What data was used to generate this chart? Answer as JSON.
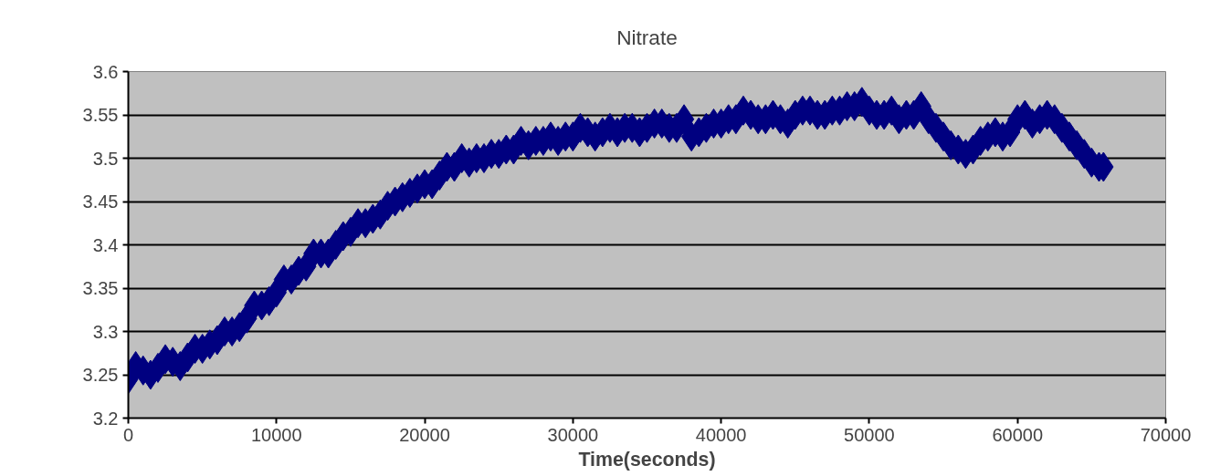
{
  "chart_data": {
    "type": "scatter",
    "title": "Nitrate",
    "xlabel": "Time(seconds)",
    "x": [
      0,
      500,
      1000,
      1500,
      2000,
      2500,
      3000,
      3500,
      4000,
      4500,
      5000,
      5500,
      6000,
      6500,
      7000,
      7500,
      8000,
      8500,
      9000,
      9500,
      10000,
      10500,
      11000,
      11500,
      12000,
      12500,
      13000,
      13500,
      14000,
      14500,
      15000,
      15500,
      16000,
      16500,
      17000,
      17500,
      18000,
      18500,
      19000,
      19500,
      20000,
      20500,
      21000,
      21500,
      22000,
      22500,
      23000,
      23500,
      24000,
      24500,
      25000,
      25500,
      26000,
      26500,
      27000,
      27500,
      28000,
      28500,
      29000,
      29500,
      30000,
      30500,
      31000,
      31500,
      32000,
      32500,
      33000,
      33500,
      34000,
      34500,
      35000,
      35500,
      36000,
      36500,
      37000,
      37500,
      38000,
      38500,
      39000,
      39500,
      40000,
      40500,
      41000,
      41500,
      42000,
      42500,
      43000,
      43500,
      44000,
      44500,
      45000,
      45500,
      46000,
      46500,
      47000,
      47500,
      48000,
      48500,
      49000,
      49500,
      50000,
      50500,
      51000,
      51500,
      52000,
      52500,
      53000,
      53500,
      54000,
      54500,
      55000,
      55500,
      56000,
      56500,
      57000,
      57500,
      58000,
      58500,
      59000,
      59500,
      60000,
      60500,
      61000,
      61500,
      62000,
      62500,
      63000,
      63500,
      64000,
      64500,
      65000,
      65500,
      65800
    ],
    "series": [
      {
        "color": "#000080",
        "values": [
          3.245,
          3.26,
          3.255,
          3.25,
          3.258,
          3.268,
          3.265,
          3.26,
          3.27,
          3.28,
          3.28,
          3.285,
          3.29,
          3.3,
          3.3,
          3.305,
          3.315,
          3.33,
          3.33,
          3.335,
          3.345,
          3.36,
          3.36,
          3.37,
          3.375,
          3.39,
          3.39,
          3.39,
          3.4,
          3.41,
          3.415,
          3.425,
          3.425,
          3.43,
          3.435,
          3.445,
          3.45,
          3.455,
          3.46,
          3.465,
          3.47,
          3.47,
          3.48,
          3.49,
          3.49,
          3.5,
          3.495,
          3.5,
          3.5,
          3.505,
          3.505,
          3.51,
          3.51,
          3.52,
          3.515,
          3.52,
          3.52,
          3.525,
          3.52,
          3.525,
          3.525,
          3.535,
          3.53,
          3.525,
          3.53,
          3.535,
          3.53,
          3.535,
          3.535,
          3.53,
          3.535,
          3.54,
          3.54,
          3.535,
          3.535,
          3.545,
          3.525,
          3.53,
          3.535,
          3.54,
          3.54,
          3.545,
          3.545,
          3.555,
          3.55,
          3.545,
          3.545,
          3.55,
          3.545,
          3.54,
          3.55,
          3.555,
          3.555,
          3.55,
          3.55,
          3.555,
          3.555,
          3.56,
          3.56,
          3.565,
          3.555,
          3.55,
          3.55,
          3.555,
          3.545,
          3.55,
          3.55,
          3.56,
          3.545,
          3.535,
          3.525,
          3.515,
          3.51,
          3.505,
          3.51,
          3.52,
          3.525,
          3.53,
          3.525,
          3.53,
          3.545,
          3.55,
          3.54,
          3.545,
          3.55,
          3.545,
          3.535,
          3.525,
          3.515,
          3.505,
          3.495,
          3.49,
          3.49
        ]
      }
    ],
    "marker": "diamond",
    "xlim": [
      0,
      70000
    ],
    "ylim": [
      3.2,
      3.6
    ],
    "xticks": [
      0,
      10000,
      20000,
      30000,
      40000,
      50000,
      60000,
      70000
    ],
    "yticks": [
      3.2,
      3.25,
      3.3,
      3.35,
      3.4,
      3.45,
      3.5,
      3.55,
      3.6
    ],
    "grid": "y"
  }
}
